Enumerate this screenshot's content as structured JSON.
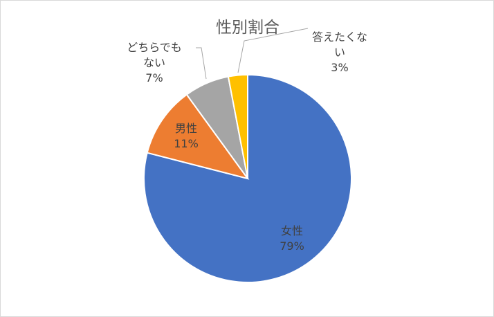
{
  "chart_data": {
    "type": "pie",
    "title": "性別割合",
    "categories": [
      "女性",
      "男性",
      "どちらでもない",
      "答えたくない"
    ],
    "values": [
      79,
      11,
      7,
      3
    ],
    "value_labels": [
      "79%",
      "11%",
      "7%",
      "3%"
    ],
    "colors": [
      "#4472c4",
      "#ed7d31",
      "#a5a5a5",
      "#ffc000"
    ]
  }
}
